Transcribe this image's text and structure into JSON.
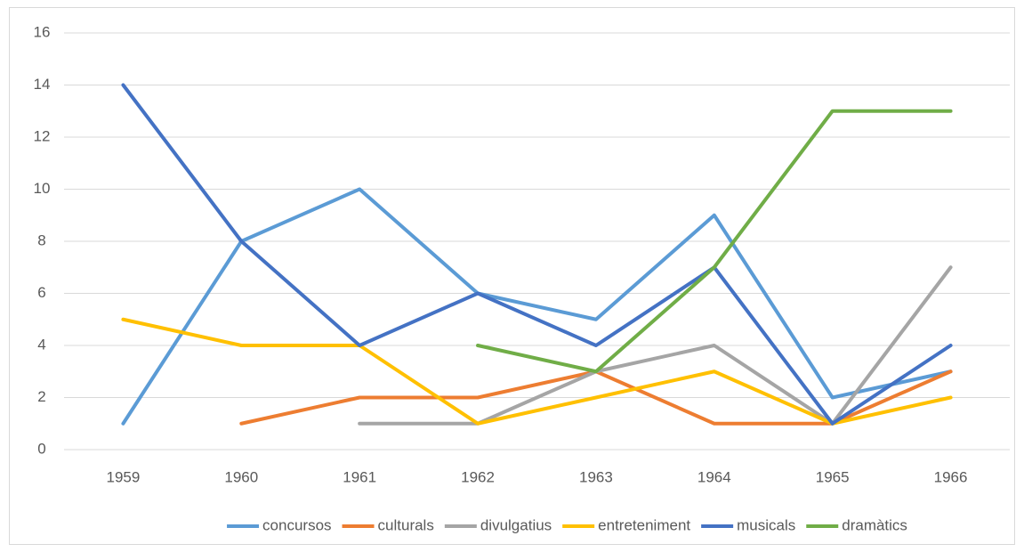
{
  "chart_data": {
    "type": "line",
    "categories": [
      "1959",
      "1960",
      "1961",
      "1962",
      "1963",
      "1964",
      "1965",
      "1966"
    ],
    "series": [
      {
        "name": "concursos",
        "color": "#5b9bd5",
        "values": [
          1,
          8,
          10,
          6,
          5,
          9,
          2,
          3
        ]
      },
      {
        "name": "culturals",
        "color": "#ed7d31",
        "values": [
          null,
          1,
          2,
          2,
          3,
          1,
          1,
          3
        ]
      },
      {
        "name": "divulgatius",
        "color": "#a5a5a5",
        "values": [
          null,
          null,
          1,
          1,
          3,
          4,
          1,
          7
        ]
      },
      {
        "name": "entreteniment",
        "color": "#ffc000",
        "values": [
          5,
          4,
          4,
          1,
          2,
          3,
          1,
          2
        ]
      },
      {
        "name": "musicals",
        "color": "#4472c4",
        "values": [
          14,
          8,
          4,
          6,
          4,
          7,
          1,
          4
        ]
      },
      {
        "name": "dramàtics",
        "color": "#70ad47",
        "values": [
          null,
          null,
          null,
          4,
          3,
          7,
          13,
          13
        ]
      }
    ],
    "ylim": [
      0,
      16
    ],
    "yticks": [
      0,
      2,
      4,
      6,
      8,
      10,
      12,
      14,
      16
    ],
    "grid": true,
    "legend": "bottom"
  }
}
